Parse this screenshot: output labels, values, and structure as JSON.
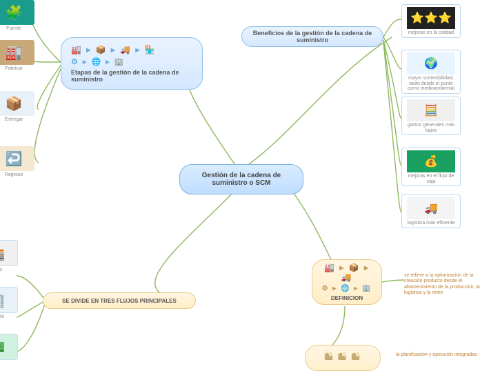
{
  "center": {
    "label": "Gestión de la cadena de suministro o SCM"
  },
  "beneficios": {
    "label": "Beneficios de la gestión de la cadena de suministro",
    "items": [
      {
        "label": "mejoras en la calidad",
        "img_bg": "#222",
        "emoji": "⭐⭐⭐"
      },
      {
        "label": "mayor sostenibilidad, tanto desde el punto como medioambiental",
        "img_bg": "#e8f4ff",
        "emoji": "🌍"
      },
      {
        "label": "gastos generales más bajos",
        "img_bg": "#f0f0f0",
        "emoji": "🧮"
      },
      {
        "label": "mejoras en el flujo de caja",
        "img_bg": "#1aa060",
        "emoji": "💰"
      },
      {
        "label": "logística más eficiente",
        "img_bg": "#f4f4f4",
        "emoji": "🚚"
      }
    ]
  },
  "etapas": {
    "label": "Etapas de la gestión de la cadena de suministro",
    "items": [
      {
        "label": "Fuente",
        "emoji": "🧩",
        "bg": "#1a9c8c"
      },
      {
        "label": "Fabricar",
        "emoji": "🏭",
        "bg": "#c8a878"
      },
      {
        "label": "Entregar",
        "emoji": "📦",
        "bg": "#e8f0f8"
      },
      {
        "label": "Regreso",
        "emoji": "↩️",
        "bg": "#f4e8d0"
      }
    ]
  },
  "flujos": {
    "label": "SE DIVIDE EN TRES FLUJOS PRINCIPALES",
    "items": [
      {
        "label": "uctos",
        "emoji": "🏬",
        "bg": "#f0f0f0"
      },
      {
        "label": "mación",
        "emoji": "🏢",
        "bg": "#e8f0f8"
      },
      {
        "label": "",
        "emoji": "💵",
        "bg": "#d0f0e0"
      }
    ]
  },
  "definicion": {
    "label": "DEFINICION",
    "text1": "se refiere a la optimización de la creación producto desde el abastecimiento de la producción, la logística y la entre",
    "text2": "la planificación y ejecución integradas"
  },
  "edges": {
    "color": "#8fb860",
    "width": 1.4
  }
}
